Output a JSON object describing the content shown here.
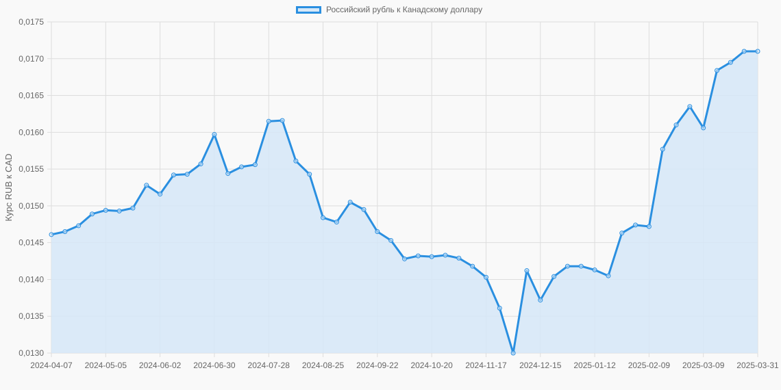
{
  "chart_data": {
    "type": "line",
    "title": "",
    "legend": [
      "Российский рубль к Канадскому доллару"
    ],
    "legend_position": "top",
    "xlabel": "",
    "ylabel": "Курс RUB к CAD",
    "ylim": [
      0.013,
      0.0175
    ],
    "yticks": [
      "0,0130",
      "0,0135",
      "0,0140",
      "0,0145",
      "0,0150",
      "0,0155",
      "0,0160",
      "0,0165",
      "0,0170",
      "0,0175"
    ],
    "xticks": [
      "2024-04-07",
      "2024-05-05",
      "2024-06-02",
      "2024-06-30",
      "2024-07-28",
      "2024-08-25",
      "2024-09-22",
      "2024-10-20",
      "2024-11-17",
      "2024-12-15",
      "2025-01-12",
      "2025-02-09",
      "2025-03-09",
      "2025-03-31"
    ],
    "grid": true,
    "fill": true,
    "colors": {
      "line": "#2a8fe0",
      "fill": "#d6e8f8",
      "grid": "#dddddd",
      "text": "#666666"
    },
    "series": [
      {
        "name": "Российский рубль к Канадскому доллару",
        "values": [
          0.01461,
          0.01465,
          0.01473,
          0.01489,
          0.01494,
          0.01493,
          0.01497,
          0.01528,
          0.01516,
          0.01542,
          0.01543,
          0.01557,
          0.01597,
          0.01544,
          0.01553,
          0.01556,
          0.01615,
          0.01616,
          0.01561,
          0.01543,
          0.01484,
          0.01478,
          0.01505,
          0.01495,
          0.01465,
          0.01453,
          0.01428,
          0.01432,
          0.01431,
          0.01433,
          0.01429,
          0.01418,
          0.01403,
          0.01361,
          0.013,
          0.01412,
          0.01372,
          0.01404,
          0.01418,
          0.01418,
          0.01413,
          0.01405,
          0.01463,
          0.01474,
          0.01472,
          0.01577,
          0.0161,
          0.01635,
          0.01606,
          0.01684,
          0.01695,
          0.0171,
          0.0171
        ]
      }
    ]
  }
}
